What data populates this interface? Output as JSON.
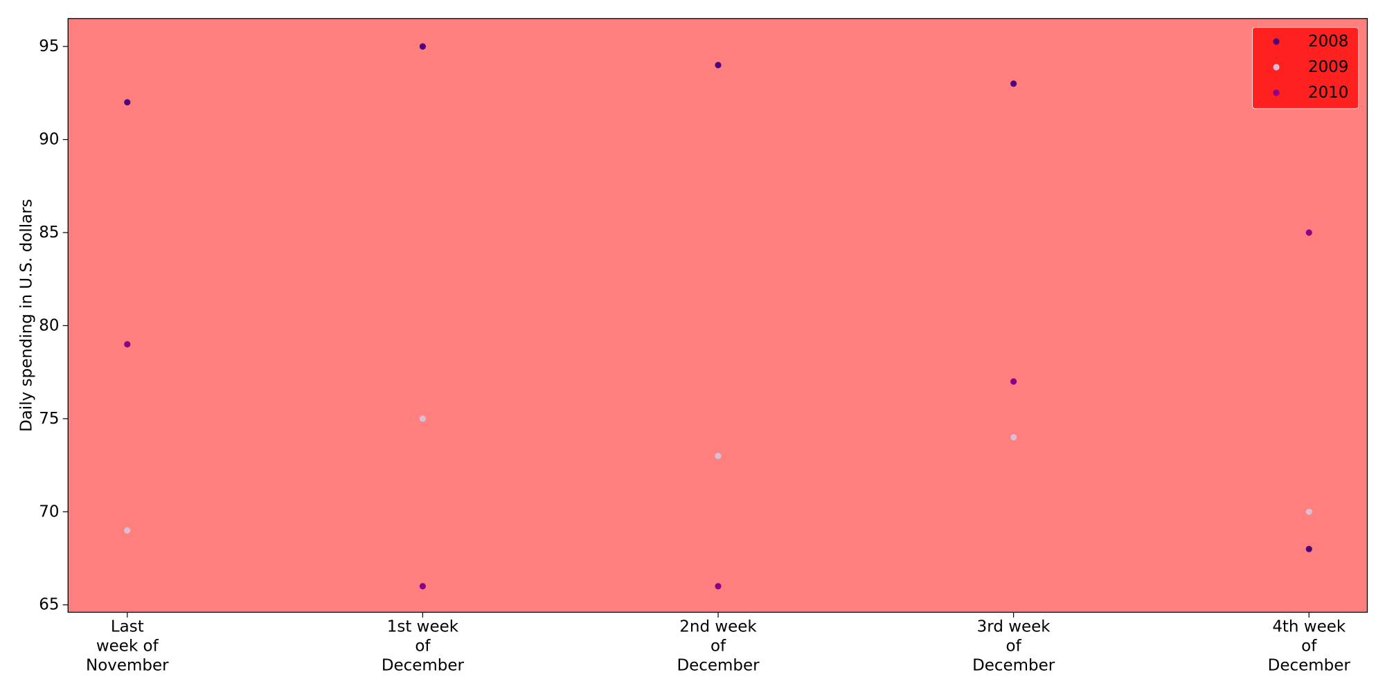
{
  "chart_data": {
    "type": "scatter",
    "title": "",
    "xlabel": "",
    "ylabel": "Daily spending in U.S. dollars",
    "categories": [
      "Last week of November",
      "1st week of December",
      "2nd week of December",
      "3rd week of December",
      "4th week of December"
    ],
    "category_label_lines": [
      [
        "Last",
        "week of",
        "November"
      ],
      [
        "1st week",
        "of",
        "December"
      ],
      [
        "2nd week",
        "of",
        "December"
      ],
      [
        "3rd week",
        "of",
        "December"
      ],
      [
        "4th week",
        "of",
        "December"
      ]
    ],
    "ylim": [
      64.6,
      96.5
    ],
    "yticks": [
      65,
      70,
      75,
      80,
      85,
      90,
      95
    ],
    "series": [
      {
        "name": "2008",
        "color": "#4b0082",
        "values": [
          92,
          95,
          94,
          93,
          68
        ]
      },
      {
        "name": "2009",
        "color": "#d8bfd8",
        "values": [
          69,
          75,
          73,
          74,
          70
        ]
      },
      {
        "name": "2010",
        "color": "#8b008b",
        "values": [
          79,
          66,
          66,
          77,
          85
        ]
      }
    ],
    "legend_position": "top-right",
    "legend_background": "#ff2020",
    "plot_background": "#ff7f7f",
    "grid": false
  }
}
